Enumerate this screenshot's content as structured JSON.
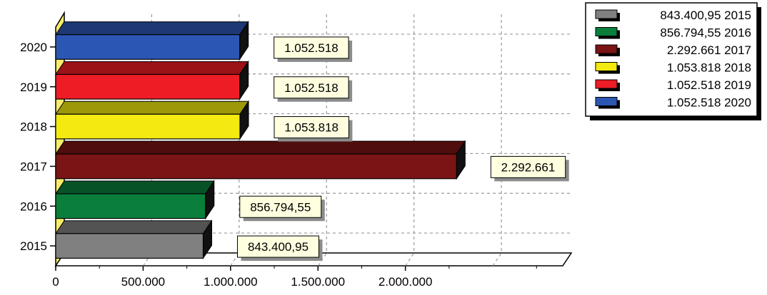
{
  "chart_data": {
    "type": "bar",
    "orientation": "horizontal",
    "three_d": true,
    "title": "",
    "xlabel": "",
    "ylabel": "",
    "categories": [
      "2015",
      "2016",
      "2017",
      "2018",
      "2019",
      "2020"
    ],
    "values": [
      843400.95,
      856794.55,
      2292661,
      1053818,
      1052518,
      1052518
    ],
    "value_labels": [
      "843.400,95",
      "856.794,55",
      "2.292.661",
      "1.053.818",
      "1.052.518",
      "1.052.518"
    ],
    "colors": [
      "#808080",
      "#0a7f3c",
      "#7b1414",
      "#f2ea10",
      "#ee1c24",
      "#2c56b3"
    ],
    "xlim": [
      0,
      2900000
    ],
    "xticks": [
      0,
      500000,
      1000000,
      1500000,
      2000000
    ],
    "xtick_labels": [
      "0",
      "500.000",
      "1.000.000",
      "1.500.000",
      "2.000.000"
    ],
    "grid": true,
    "legend_position": "top-right",
    "legend": [
      "843.400,95 2015",
      "856.794,55 2016",
      "2.292.661 2017",
      "1.053.818 2018",
      "1.052.518 2019",
      "1.052.518 2020"
    ]
  }
}
